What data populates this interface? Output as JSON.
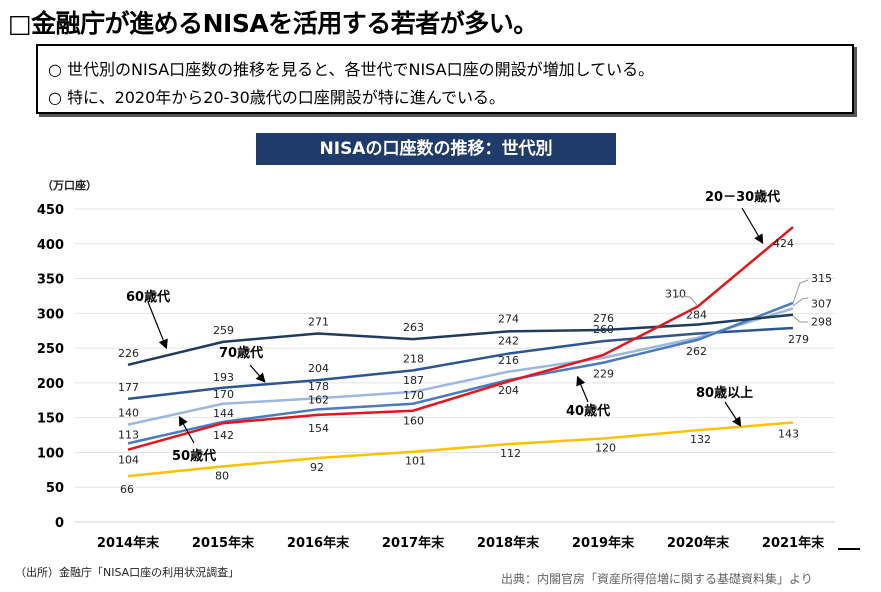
{
  "header": {
    "title": "□金融庁が進めるNISAを活用する若者が多い。"
  },
  "summary": {
    "bullets": [
      "○ 世代別のNISA口座数の推移を見ると、各世代でNISA口座の開設が増加している。",
      "○ 特に、2020年から20-30歳代の口座開設が特に進んでいる。"
    ]
  },
  "footer": {
    "source_left": "（出所）金融庁「NISA口座の利用状況調査」",
    "source_right": "出典：内閣官房「資産所得倍増に関する基礎資料集」より"
  },
  "chart_data": {
    "type": "line",
    "title": "NISAの口座数の推移：世代別",
    "ylabel": "（万口座）",
    "xlabel": "",
    "ylim": [
      0,
      450
    ],
    "yticks": [
      0,
      50,
      100,
      150,
      200,
      250,
      300,
      350,
      400,
      450
    ],
    "grid": true,
    "categories": [
      "2014年末",
      "2015年末",
      "2016年末",
      "2017年末",
      "2018年末",
      "2019年末",
      "2020年末",
      "2021年末"
    ],
    "series": [
      {
        "name": "80歳以上",
        "color": "#ffc000",
        "values": [
          66,
          80,
          92,
          101,
          112,
          120,
          132,
          143
        ],
        "labels": [
          "66",
          "80",
          "92",
          "101",
          "112",
          "120",
          "132",
          "143"
        ]
      },
      {
        "name": "70歳代",
        "color": "#2e5590",
        "values": [
          177,
          193,
          204,
          218,
          242,
          260,
          271,
          279
        ],
        "labels": [
          "177",
          "193",
          "204",
          "218",
          "242",
          "260",
          "",
          "279"
        ]
      },
      {
        "name": "50歳代",
        "color": "#9db8dc",
        "values": [
          140,
          170,
          178,
          187,
          216,
          236,
          265,
          307
        ],
        "labels": [
          "140",
          "170",
          "178",
          "187",
          "216",
          "",
          "",
          "307"
        ]
      },
      {
        "name": "40歳代",
        "color": "#4a7abf",
        "values": [
          113,
          144,
          162,
          170,
          204,
          229,
          262,
          315
        ],
        "labels": [
          "113",
          "144",
          "162",
          "170",
          "204",
          "229",
          "262",
          "315"
        ]
      },
      {
        "name": "60歳代",
        "color": "#1f3b5e",
        "values": [
          226,
          259,
          271,
          263,
          274,
          276,
          284,
          298
        ],
        "labels": [
          "226",
          "259",
          "271",
          "263",
          "274",
          "276",
          "284",
          "298"
        ]
      },
      {
        "name": "20－30歳代",
        "color": "#e8141c",
        "values": [
          104,
          142,
          154,
          160,
          202,
          240,
          310,
          424
        ],
        "labels": [
          "104",
          "142",
          "154",
          "160",
          "",
          "",
          "310",
          "424"
        ]
      }
    ]
  }
}
